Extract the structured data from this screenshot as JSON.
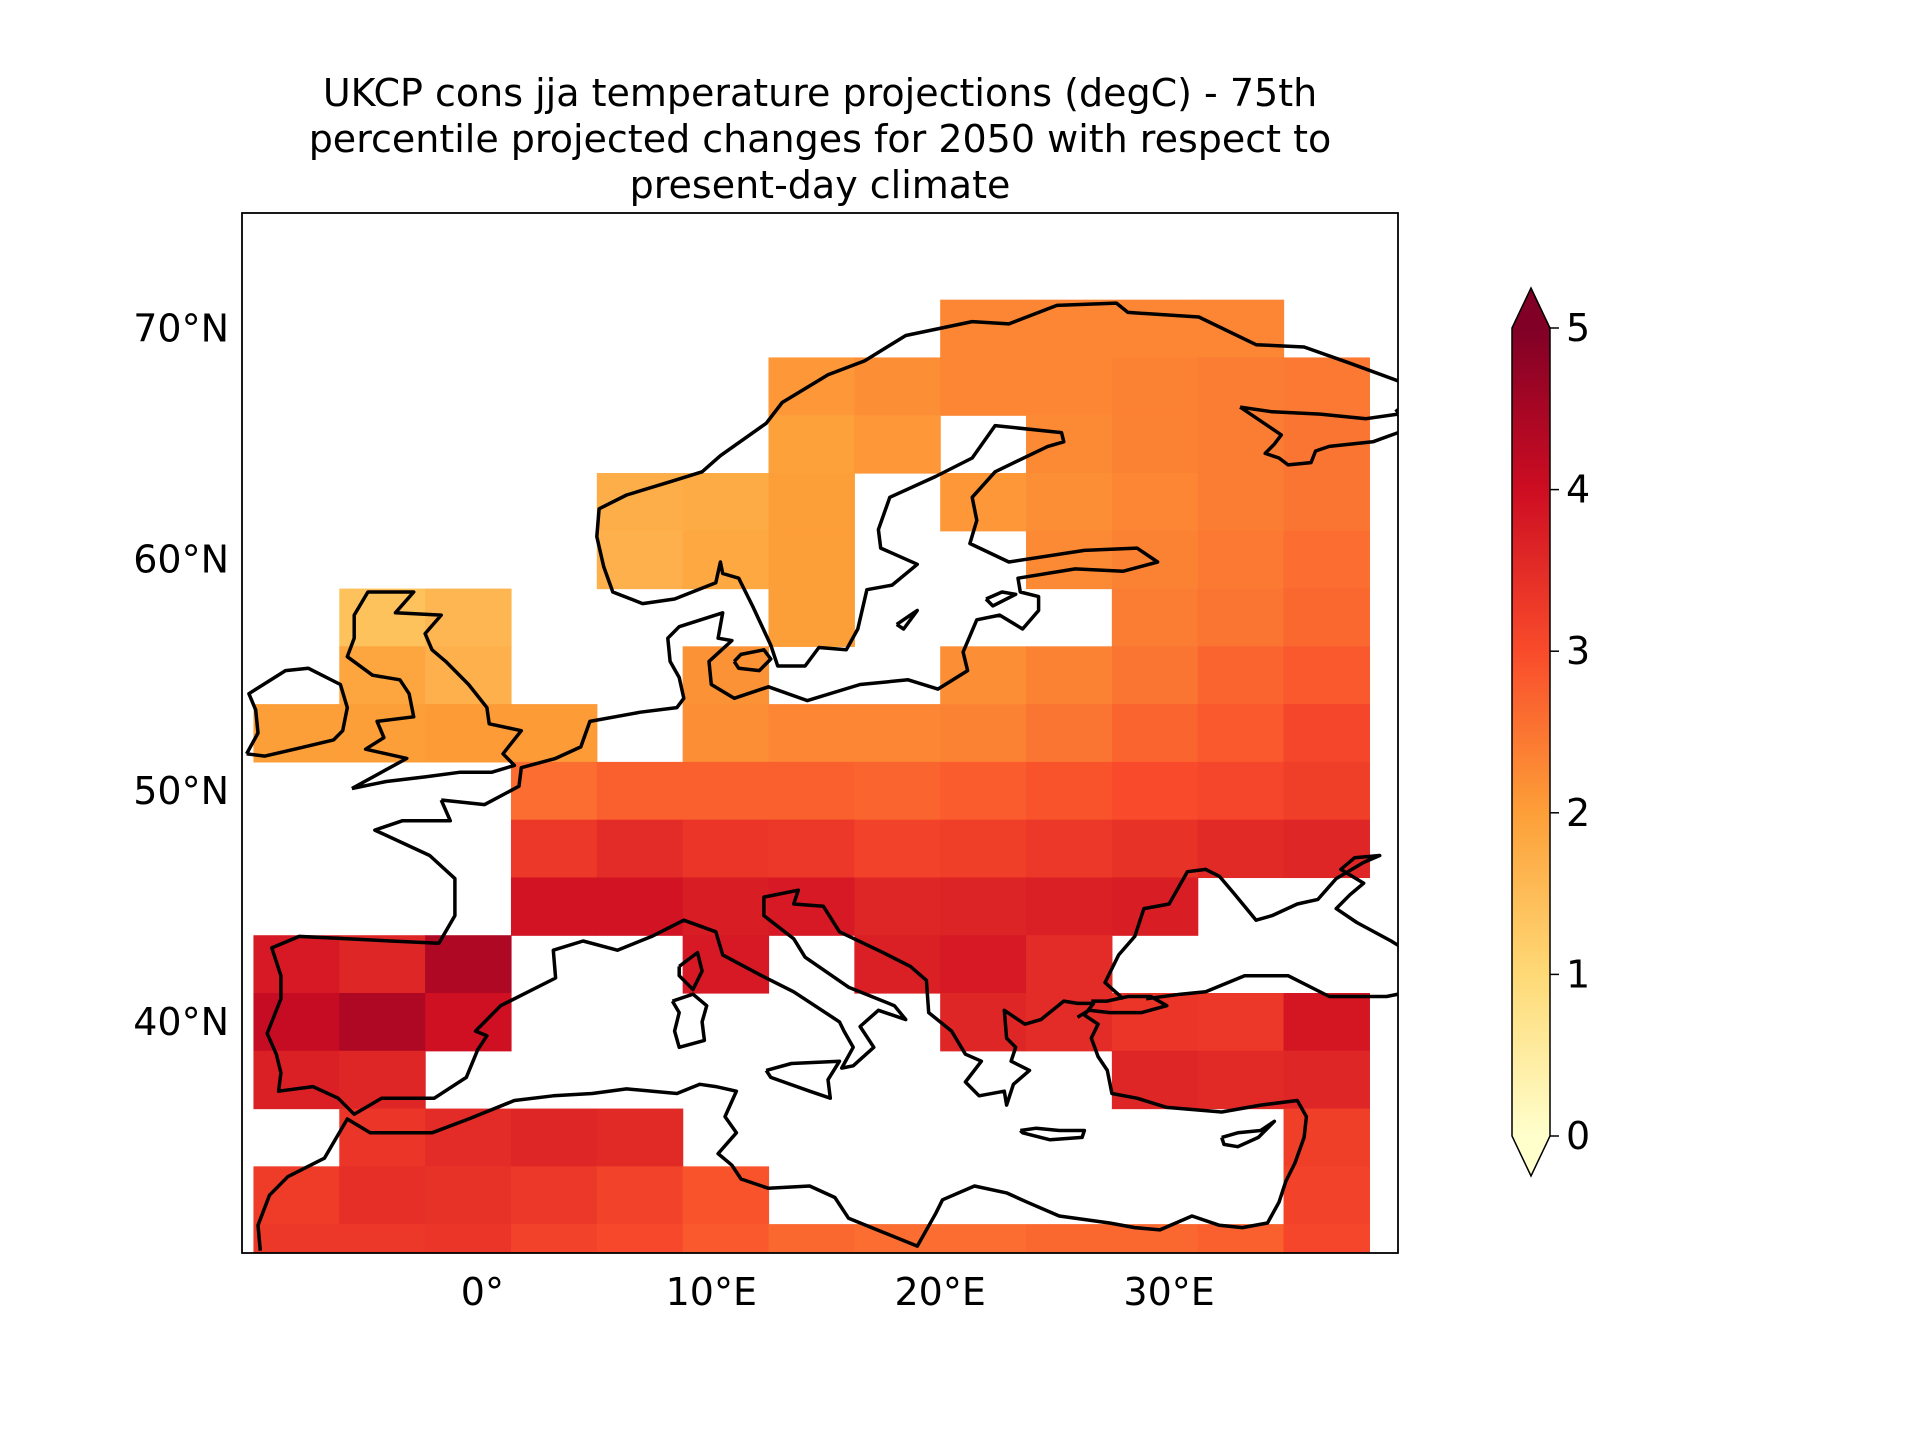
{
  "title_lines": [
    "UKCP cons jja temperature projections (degC) - 75th",
    "percentile projected changes for 2050 with respect to",
    "present-day climate"
  ],
  "chart_data": {
    "type": "heatmap",
    "title": "UKCP cons jja temperature projections (degC) - 75th percentile projected changes for 2050 with respect to present-day climate",
    "variable": "jja temperature change (degC)",
    "colormap": "YlOrRd",
    "clim": [
      0,
      5
    ],
    "colorbar_extend": "both",
    "xlim": [
      -10.5,
      40
    ],
    "ylim": [
      30,
      75
    ],
    "x_ticks": [
      0,
      10,
      20,
      30
    ],
    "x_tick_labels": [
      "0°",
      "10°E",
      "20°E",
      "30°E"
    ],
    "y_ticks": [
      40,
      50,
      60,
      70
    ],
    "y_tick_labels": [
      "40°N",
      "50°N",
      "60°N",
      "70°N"
    ],
    "colorbar_ticks": [
      0,
      1,
      2,
      3,
      4,
      5
    ],
    "colorbar_tick_labels": [
      "0",
      "1",
      "2",
      "3",
      "4",
      "5"
    ],
    "lon_edges": [
      -10,
      -6.25,
      -2.5,
      1.25,
      5,
      8.75,
      12.5,
      16.25,
      20,
      23.75,
      27.5,
      31.25,
      35,
      38.75
    ],
    "lat_edges": [
      71.25,
      68.75,
      66.25,
      63.75,
      61.25,
      58.75,
      56.25,
      53.75,
      51.25,
      48.75,
      46.25,
      43.75,
      41.25,
      38.75,
      36.25,
      33.75,
      31.25,
      30.0
    ],
    "values": [
      [
        null,
        null,
        null,
        null,
        null,
        null,
        null,
        null,
        2.3,
        2.3,
        2.3,
        2.3,
        null
      ],
      [
        null,
        null,
        null,
        null,
        null,
        null,
        2.1,
        2.2,
        2.3,
        2.3,
        2.35,
        2.4,
        2.45
      ],
      [
        null,
        null,
        null,
        null,
        null,
        null,
        1.95,
        2.1,
        null,
        2.25,
        2.35,
        2.4,
        2.5
      ],
      [
        null,
        null,
        null,
        null,
        1.75,
        1.8,
        2.0,
        null,
        2.1,
        2.2,
        2.3,
        2.4,
        2.5
      ],
      [
        null,
        null,
        null,
        null,
        1.7,
        1.85,
        2.0,
        null,
        null,
        2.25,
        2.35,
        2.45,
        2.6
      ],
      [
        null,
        1.4,
        1.6,
        null,
        null,
        null,
        2.0,
        null,
        null,
        null,
        2.4,
        2.5,
        2.65
      ],
      [
        null,
        1.9,
        1.7,
        null,
        null,
        2.15,
        null,
        null,
        2.2,
        2.35,
        2.5,
        2.7,
        2.85
      ],
      [
        2.0,
        2.0,
        2.05,
        2.05,
        null,
        2.2,
        2.3,
        2.3,
        2.35,
        2.5,
        2.7,
        2.85,
        3.1
      ],
      [
        null,
        null,
        null,
        2.6,
        2.75,
        2.75,
        2.75,
        2.7,
        2.8,
        2.9,
        3.0,
        3.1,
        3.2
      ],
      [
        null,
        null,
        null,
        3.3,
        3.5,
        3.35,
        3.3,
        3.15,
        3.2,
        3.3,
        3.4,
        3.55,
        3.6
      ],
      [
        null,
        null,
        null,
        3.9,
        3.9,
        3.75,
        3.8,
        3.6,
        3.65,
        3.7,
        3.75,
        null,
        null
      ],
      [
        3.8,
        3.6,
        4.4,
        null,
        null,
        3.8,
        null,
        3.7,
        3.8,
        3.5,
        null,
        null,
        null
      ],
      [
        4.1,
        4.4,
        3.95,
        null,
        null,
        null,
        null,
        null,
        3.6,
        3.5,
        3.35,
        3.3,
        3.85
      ],
      [
        3.7,
        3.6,
        null,
        null,
        null,
        null,
        null,
        null,
        null,
        null,
        3.6,
        3.55,
        3.6
      ],
      [
        null,
        3.35,
        3.5,
        3.6,
        3.55,
        null,
        null,
        null,
        null,
        null,
        null,
        null,
        3.2
      ],
      [
        3.25,
        3.45,
        3.4,
        3.3,
        3.15,
        2.9,
        null,
        null,
        null,
        null,
        null,
        null,
        3.15
      ],
      [
        3.3,
        3.3,
        3.35,
        3.15,
        3.05,
        2.85,
        2.65,
        2.6,
        2.6,
        2.65,
        2.65,
        2.75,
        3.1
      ]
    ]
  },
  "colormap_stops": [
    {
      "v": 0.0,
      "c": "#ffffcc"
    },
    {
      "v": 1.0,
      "c": "#fed976"
    },
    {
      "v": 2.0,
      "c": "#fd9f38"
    },
    {
      "v": 3.0,
      "c": "#f94b2b"
    },
    {
      "v": 4.0,
      "c": "#cd0d22"
    },
    {
      "v": 5.0,
      "c": "#800026"
    }
  ],
  "colors": {
    "coastline": "#000000",
    "frame": "#000000",
    "background": "#ffffff"
  }
}
